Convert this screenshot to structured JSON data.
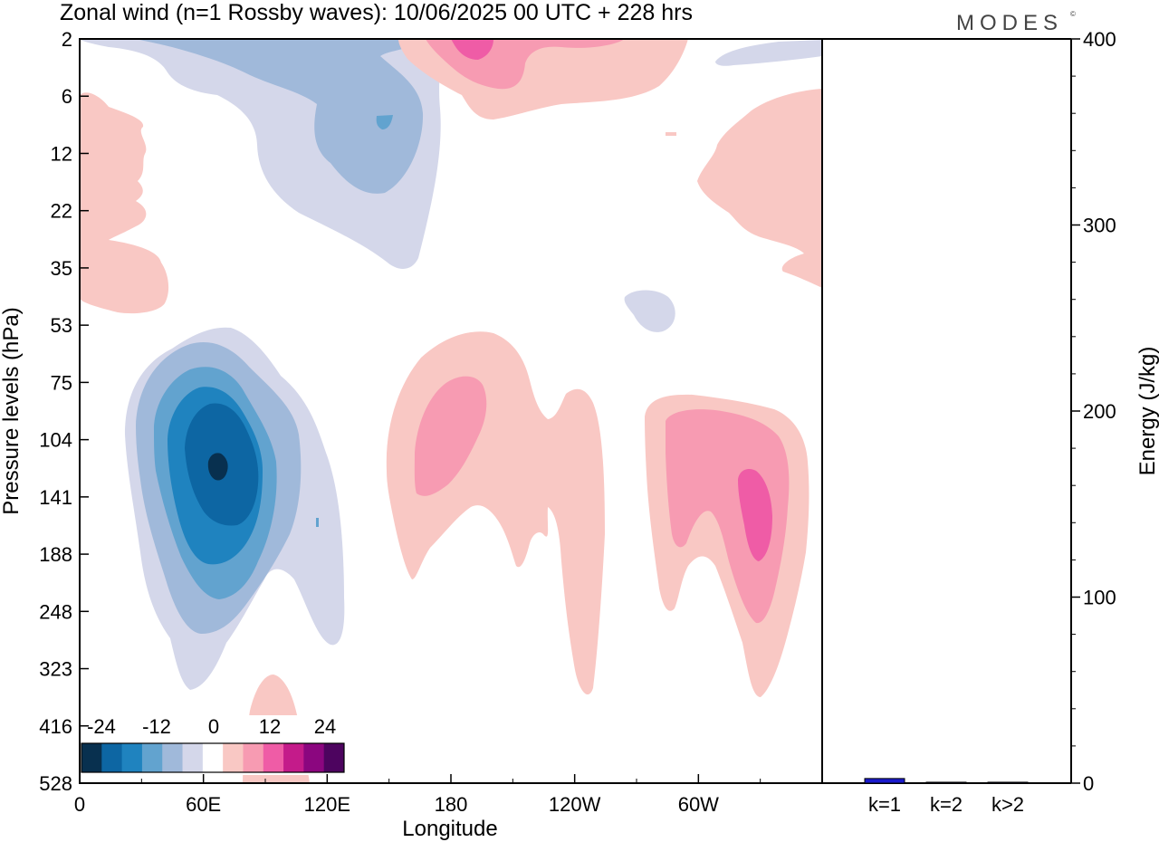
{
  "title": "Zonal wind (n=1 Rossby waves):  10/06/2025  00 UTC  + 228 hrs",
  "logo": "MODES",
  "logo_mark": "©",
  "chart_data": [
    {
      "type": "heatmap",
      "title": "Zonal wind (n=1 Rossby waves):  10/06/2025  00 UTC  + 228 hrs",
      "xlabel": "Longitude",
      "ylabel": "Pressure levels (hPa)",
      "x_ticks": [
        "0",
        "60E",
        "120E",
        "180",
        "120W",
        "60W"
      ],
      "x_tick_values": [
        0,
        60,
        120,
        180,
        240,
        300
      ],
      "xlim": [
        0,
        360
      ],
      "y_ticks": [
        "2",
        "6",
        "12",
        "22",
        "35",
        "53",
        "75",
        "104",
        "141",
        "188",
        "248",
        "323",
        "416",
        "528"
      ],
      "y_scale": "log-pressure",
      "colorbar": {
        "tick_labels": [
          "-24",
          "-12",
          "0",
          "12",
          "24"
        ],
        "levels": [
          -30,
          -25,
          -20,
          -15,
          -10,
          -5,
          5,
          10,
          15,
          20,
          25,
          30
        ],
        "colors": [
          "#08304f",
          "#0d66a3",
          "#1f83bf",
          "#62a3cf",
          "#a0b9da",
          "#d4d7ea",
          "#ffffff",
          "#f9c8c4",
          "#f79bb2",
          "#ef5ca6",
          "#c41b8a",
          "#8b067f",
          "#4d045f"
        ]
      },
      "features": [
        {
          "sign": "negative",
          "center_lon": 65,
          "center_level": "125",
          "peak": -28
        },
        {
          "sign": "negative",
          "center_lon": 75,
          "center_level": "8",
          "peak": -12
        },
        {
          "sign": "positive",
          "center_lon": 180,
          "center_level": "100",
          "peak": 12
        },
        {
          "sign": "positive",
          "center_lon": 320,
          "center_level": "160",
          "peak": 18
        },
        {
          "sign": "positive",
          "center_lon": 190,
          "center_level": "3",
          "peak": 15
        },
        {
          "sign": "positive",
          "center_lon": 5,
          "center_level": "15",
          "peak": 6
        }
      ]
    },
    {
      "type": "bar",
      "ylabel": "Energy (J/kg)",
      "categories": [
        "k=1",
        "k=2",
        "k>2"
      ],
      "values": [
        2.5,
        0.5,
        0.5
      ],
      "ylim": [
        0,
        400
      ],
      "y_ticks": [
        "0",
        "100",
        "200",
        "300",
        "400"
      ],
      "bar_color": "#1a1acc"
    }
  ]
}
